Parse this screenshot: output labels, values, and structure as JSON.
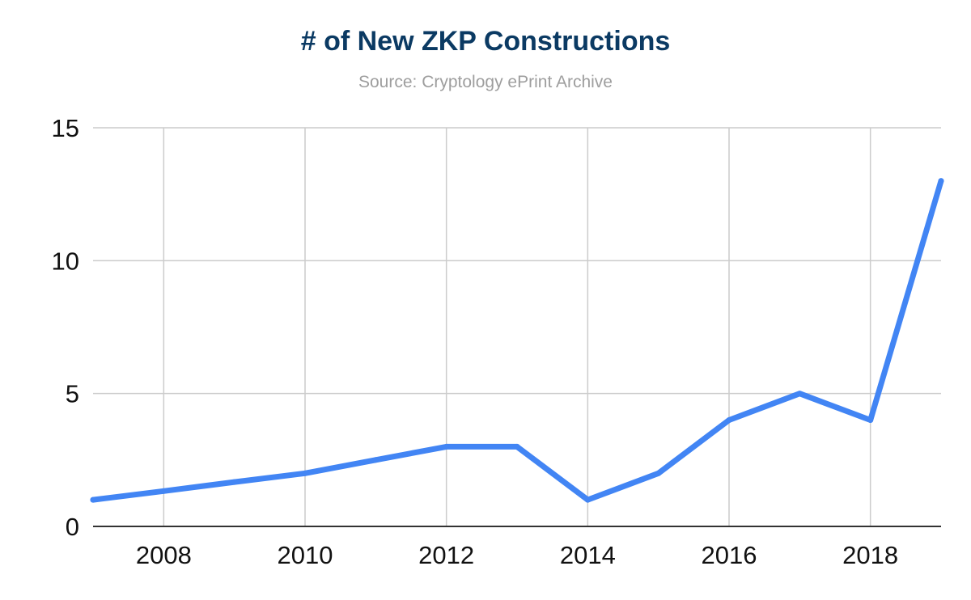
{
  "chart_data": {
    "type": "line",
    "title": "# of New ZKP Constructions",
    "subtitle": "Source: Cryptology ePrint Archive",
    "xlabel": "",
    "ylabel": "",
    "x": [
      2007,
      2008,
      2009,
      2010,
      2011,
      2012,
      2013,
      2014,
      2015,
      2016,
      2017,
      2018,
      2019
    ],
    "series": [
      {
        "values": [
          1,
          1.33,
          1.67,
          2,
          2.5,
          3,
          3,
          1,
          2,
          4,
          5,
          4,
          13
        ],
        "color": "#4285f4"
      }
    ],
    "xlim": [
      2007,
      2019
    ],
    "ylim": [
      0,
      15
    ],
    "x_ticks": [
      "2008",
      "2010",
      "2012",
      "2014",
      "2016",
      "2018"
    ],
    "x_tick_values": [
      2008,
      2010,
      2012,
      2014,
      2016,
      2018
    ],
    "y_ticks": [
      "0",
      "5",
      "10",
      "15"
    ],
    "y_tick_values": [
      0,
      5,
      10,
      15
    ],
    "grid": true,
    "legend": "none",
    "colors": {
      "title": "#0b3a63",
      "subtitle": "#9e9e9e",
      "grid": "#cccccc",
      "axis": "#333333",
      "line": "#4285f4"
    }
  }
}
